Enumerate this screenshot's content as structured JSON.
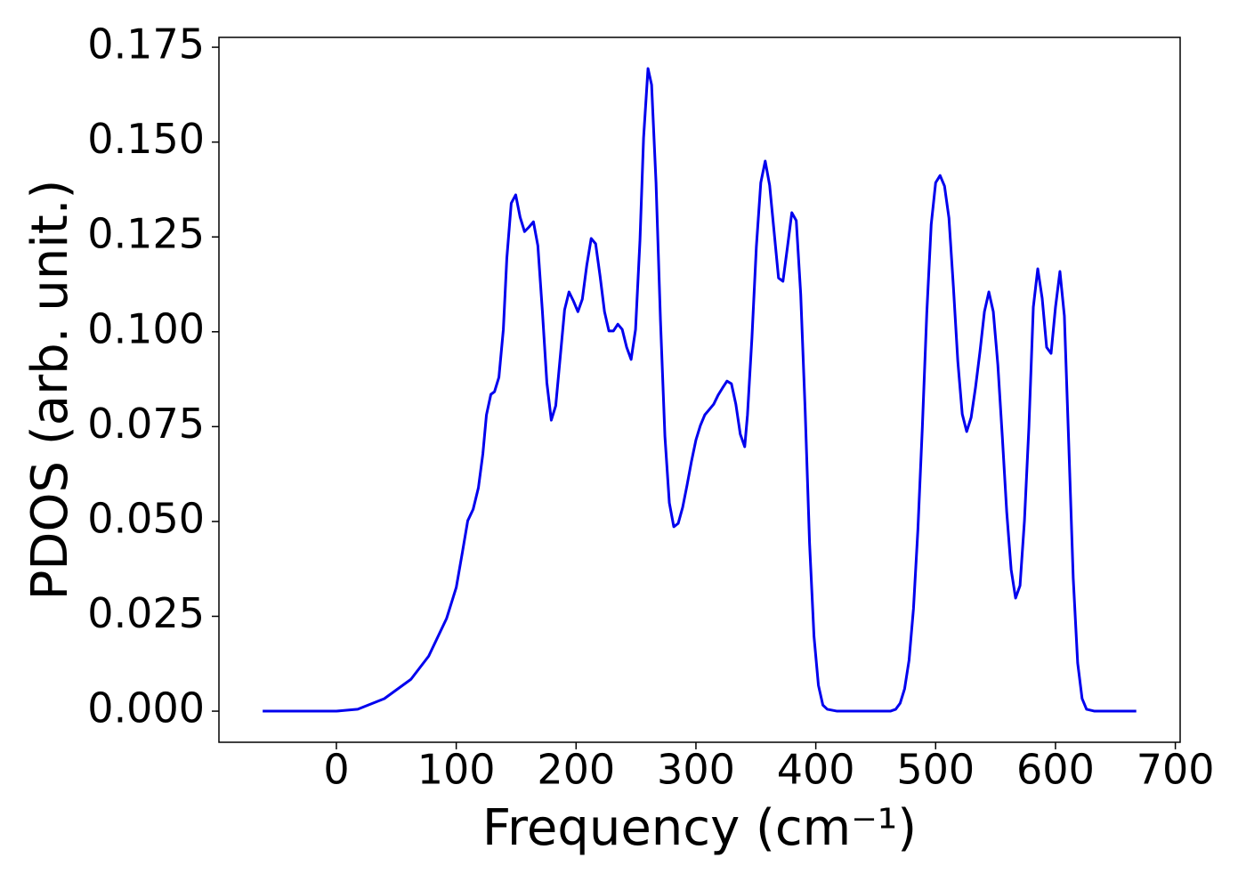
{
  "chart_data": {
    "type": "line",
    "xlabel": "Frequency (cm⁻¹)",
    "ylabel": "PDOS (arb. unit.)",
    "xlim": [
      -98,
      704
    ],
    "ylim": [
      -0.0082,
      0.1776
    ],
    "xticks": [
      0,
      100,
      200,
      300,
      400,
      500,
      600,
      700
    ],
    "yticks": [
      {
        "value": 0,
        "label": "0.000"
      },
      {
        "value": 0.025,
        "label": "0.025"
      },
      {
        "value": 0.05,
        "label": "0.050"
      },
      {
        "value": 0.075,
        "label": "0.075"
      },
      {
        "value": 0.1,
        "label": "0.100"
      },
      {
        "value": 0.125,
        "label": "0.125"
      },
      {
        "value": 0.15,
        "label": "0.150"
      },
      {
        "value": 0.175,
        "label": "0.175"
      }
    ],
    "series": [
      {
        "color": "#0000ee",
        "x": [
          -61.5,
          0,
          17.8,
          40.0,
          62.2,
          77.0,
          91.9,
          100.0,
          105.2,
          109.6,
          114.1,
          118.5,
          122.2,
          125.2,
          128.9,
          131.9,
          135.6,
          139.3,
          142.2,
          145.9,
          149.6,
          153.3,
          157.0,
          160.7,
          164.4,
          168.1,
          171.9,
          175.6,
          179.3,
          183.0,
          186.7,
          190.4,
          194.1,
          197.8,
          201.5,
          205.2,
          208.9,
          212.6,
          216.3,
          220.0,
          223.7,
          227.4,
          231.1,
          234.8,
          238.5,
          242.2,
          245.9,
          249.6,
          253.3,
          256.3,
          260.0,
          263.0,
          266.7,
          270.4,
          274.1,
          277.8,
          281.5,
          285.2,
          288.9,
          292.6,
          296.3,
          300.0,
          303.7,
          307.4,
          311.1,
          314.8,
          318.5,
          322.2,
          325.9,
          329.6,
          333.3,
          337.0,
          340.7,
          343.0,
          346.7,
          350.4,
          354.1,
          357.8,
          361.5,
          365.2,
          368.9,
          372.6,
          376.3,
          380.0,
          383.7,
          387.4,
          391.1,
          394.8,
          398.5,
          402.2,
          405.9,
          409.6,
          417.8,
          462.2,
          466.7,
          470.4,
          474.1,
          477.8,
          481.5,
          485.2,
          488.9,
          492.6,
          496.3,
          500.0,
          503.7,
          507.4,
          511.1,
          514.8,
          518.5,
          522.2,
          525.9,
          529.6,
          533.3,
          537.0,
          540.7,
          544.4,
          548.1,
          551.9,
          555.6,
          559.3,
          563.0,
          566.7,
          570.4,
          574.1,
          577.8,
          581.5,
          585.2,
          588.9,
          592.6,
          596.3,
          600.0,
          603.7,
          607.4,
          611.1,
          614.8,
          618.5,
          622.2,
          625.9,
          632.6,
          667.4
        ],
        "values": [
          0,
          0,
          0.0005,
          0.0033,
          0.0084,
          0.0145,
          0.0244,
          0.0326,
          0.042,
          0.0502,
          0.0532,
          0.0589,
          0.0678,
          0.0781,
          0.0835,
          0.0842,
          0.088,
          0.1006,
          0.1194,
          0.1339,
          0.1361,
          0.1302,
          0.1264,
          0.1276,
          0.129,
          0.1227,
          0.1053,
          0.0866,
          0.0767,
          0.0805,
          0.0931,
          0.1058,
          0.1105,
          0.1081,
          0.1053,
          0.1086,
          0.1175,
          0.1246,
          0.1232,
          0.1147,
          0.1053,
          0.1002,
          0.1002,
          0.102,
          0.1006,
          0.0959,
          0.0927,
          0.1006,
          0.1241,
          0.1511,
          0.1694,
          0.1651,
          0.1393,
          0.103,
          0.0725,
          0.0549,
          0.0486,
          0.0495,
          0.0537,
          0.0596,
          0.0659,
          0.0715,
          0.0753,
          0.0781,
          0.0795,
          0.0809,
          0.0833,
          0.0852,
          0.087,
          0.0863,
          0.0809,
          0.073,
          0.0697,
          0.0781,
          0.0983,
          0.1224,
          0.1393,
          0.145,
          0.1386,
          0.1264,
          0.1142,
          0.1133,
          0.1222,
          0.1314,
          0.1293,
          0.11,
          0.0795,
          0.0443,
          0.0197,
          0.0068,
          0.0016,
          0.0005,
          0,
          0,
          0.0005,
          0.0021,
          0.0059,
          0.0134,
          0.027,
          0.0479,
          0.0748,
          0.1049,
          0.1283,
          0.1393,
          0.1412,
          0.1384,
          0.13,
          0.1119,
          0.0922,
          0.0783,
          0.0737,
          0.0774,
          0.0854,
          0.0948,
          0.1053,
          0.1105,
          0.1053,
          0.0913,
          0.0725,
          0.0525,
          0.0373,
          0.0298,
          0.0331,
          0.0502,
          0.0748,
          0.1065,
          0.1166,
          0.1088,
          0.0959,
          0.0943,
          0.1065,
          0.1159,
          0.1042,
          0.0701,
          0.035,
          0.0127,
          0.0033,
          0.0005,
          0,
          0
        ]
      }
    ]
  }
}
